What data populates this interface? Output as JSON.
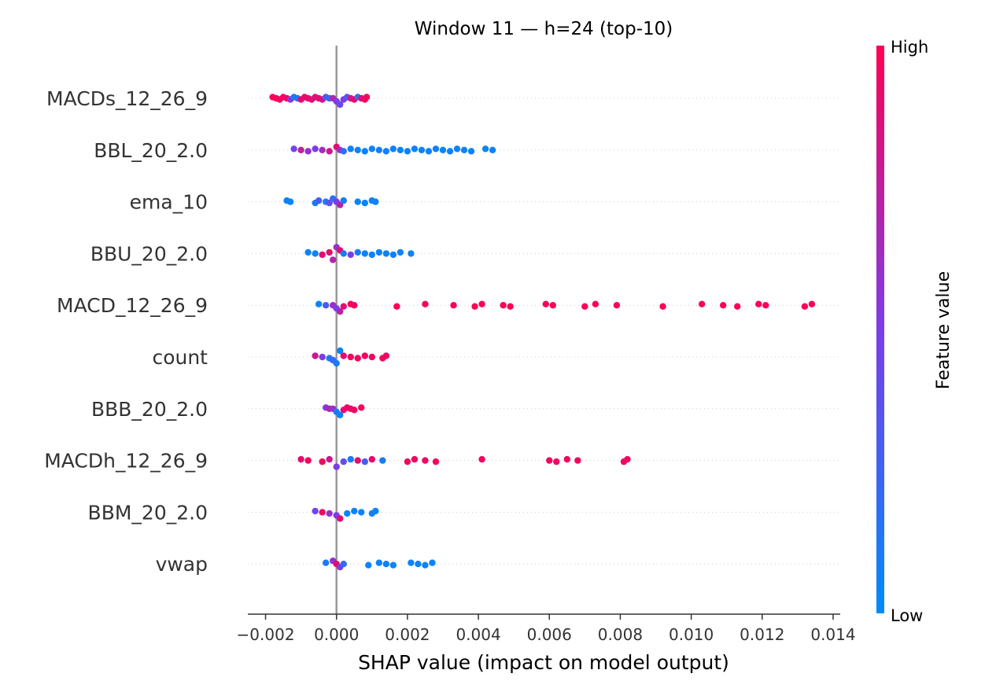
{
  "chart_data": {
    "type": "scatter",
    "subtype": "shap-beeswarm",
    "title": "Window 11 — h=24 (top-10)",
    "xlabel": "SHAP value (impact on model output)",
    "ylabel": "",
    "xlim": [
      -0.0025,
      0.0142
    ],
    "x_ticks": [
      -0.002,
      0.0,
      0.002,
      0.004,
      0.006,
      0.008,
      0.01,
      0.012,
      0.014
    ],
    "x_tick_labels": [
      "−0.002",
      "0.000",
      "0.002",
      "0.004",
      "0.006",
      "0.008",
      "0.010",
      "0.012",
      "0.014"
    ],
    "zero_line": 0.0,
    "grid": false,
    "colorbar": {
      "title": "Feature value",
      "high_label": "High",
      "low_label": "Low",
      "low_color": "#008bfb",
      "mid_color": "#7c3de8",
      "high_color": "#ff0052"
    },
    "features": [
      {
        "name": "MACDs_12_26_9",
        "points": [
          {
            "x": -0.0018,
            "v": 0.98
          },
          {
            "x": -0.0017,
            "v": 0.97
          },
          {
            "x": -0.0016,
            "v": 0.95
          },
          {
            "x": -0.0015,
            "v": 0.96
          },
          {
            "x": -0.0014,
            "v": 0.92
          },
          {
            "x": -0.0013,
            "v": 0.55
          },
          {
            "x": -0.0012,
            "v": 0.1
          },
          {
            "x": -0.0011,
            "v": 0.15
          },
          {
            "x": -0.001,
            "v": 0.9
          },
          {
            "x": -0.0009,
            "v": 0.93
          },
          {
            "x": -0.0008,
            "v": 0.9
          },
          {
            "x": -0.0007,
            "v": 0.88
          },
          {
            "x": -0.0006,
            "v": 0.85
          },
          {
            "x": -0.0005,
            "v": 0.9
          },
          {
            "x": -0.0004,
            "v": 0.82
          },
          {
            "x": -0.0003,
            "v": 0.3
          },
          {
            "x": -0.0002,
            "v": 0.2
          },
          {
            "x": -0.0001,
            "v": 0.7
          },
          {
            "x": 0.0,
            "v": 0.5
          },
          {
            "x": 0.0001,
            "v": 0.45
          },
          {
            "x": 0.0002,
            "v": 0.5
          },
          {
            "x": 0.0003,
            "v": 0.35
          },
          {
            "x": 0.0004,
            "v": 0.8
          },
          {
            "x": 0.0005,
            "v": 0.92
          },
          {
            "x": 0.0006,
            "v": 0.2
          },
          {
            "x": 0.0007,
            "v": 0.85
          },
          {
            "x": 0.0008,
            "v": 0.95
          },
          {
            "x": 0.00085,
            "v": 0.96
          }
        ]
      },
      {
        "name": "BBL_20_2.0",
        "points": [
          {
            "x": -0.0012,
            "v": 0.45
          },
          {
            "x": -0.001,
            "v": 0.75
          },
          {
            "x": -0.0008,
            "v": 0.6
          },
          {
            "x": -0.0006,
            "v": 0.5
          },
          {
            "x": -0.0004,
            "v": 0.65
          },
          {
            "x": -0.0002,
            "v": 0.8
          },
          {
            "x": 0.0,
            "v": 0.9
          },
          {
            "x": 0.0001,
            "v": 0.6
          },
          {
            "x": 0.0002,
            "v": 0.2
          },
          {
            "x": 0.0004,
            "v": 0.05
          },
          {
            "x": 0.0006,
            "v": 0.05
          },
          {
            "x": 0.0008,
            "v": 0.05
          },
          {
            "x": 0.001,
            "v": 0.05
          },
          {
            "x": 0.0012,
            "v": 0.05
          },
          {
            "x": 0.0014,
            "v": 0.05
          },
          {
            "x": 0.0016,
            "v": 0.05
          },
          {
            "x": 0.0018,
            "v": 0.05
          },
          {
            "x": 0.002,
            "v": 0.05
          },
          {
            "x": 0.0022,
            "v": 0.05
          },
          {
            "x": 0.0024,
            "v": 0.05
          },
          {
            "x": 0.0026,
            "v": 0.05
          },
          {
            "x": 0.0028,
            "v": 0.05
          },
          {
            "x": 0.003,
            "v": 0.05
          },
          {
            "x": 0.0032,
            "v": 0.05
          },
          {
            "x": 0.0034,
            "v": 0.05
          },
          {
            "x": 0.0036,
            "v": 0.05
          },
          {
            "x": 0.0038,
            "v": 0.05
          },
          {
            "x": 0.0042,
            "v": 0.05
          },
          {
            "x": 0.0044,
            "v": 0.05
          }
        ]
      },
      {
        "name": "ema_10",
        "points": [
          {
            "x": -0.0014,
            "v": 0.05
          },
          {
            "x": -0.0013,
            "v": 0.05
          },
          {
            "x": -0.0006,
            "v": 0.1
          },
          {
            "x": -0.0005,
            "v": 0.3
          },
          {
            "x": -0.0003,
            "v": 0.1
          },
          {
            "x": -0.0002,
            "v": 0.4
          },
          {
            "x": -0.0001,
            "v": 0.2
          },
          {
            "x": 0.0,
            "v": 0.5
          },
          {
            "x": 0.0001,
            "v": 0.7
          },
          {
            "x": 0.0002,
            "v": 0.1
          },
          {
            "x": 0.0006,
            "v": 0.05
          },
          {
            "x": 0.0008,
            "v": 0.05
          },
          {
            "x": 0.001,
            "v": 0.05
          },
          {
            "x": 0.0011,
            "v": 0.05
          }
        ]
      },
      {
        "name": "BBU_20_2.0",
        "points": [
          {
            "x": -0.0008,
            "v": 0.05
          },
          {
            "x": -0.0006,
            "v": 0.05
          },
          {
            "x": -0.0004,
            "v": 0.9
          },
          {
            "x": -0.0002,
            "v": 0.9
          },
          {
            "x": -0.0001,
            "v": 0.7
          },
          {
            "x": 0.0,
            "v": 0.6
          },
          {
            "x": 0.0001,
            "v": 0.9
          },
          {
            "x": 0.0002,
            "v": 0.1
          },
          {
            "x": 0.0004,
            "v": 0.5
          },
          {
            "x": 0.0006,
            "v": 0.1
          },
          {
            "x": 0.0008,
            "v": 0.05
          },
          {
            "x": 0.001,
            "v": 0.05
          },
          {
            "x": 0.0012,
            "v": 0.05
          },
          {
            "x": 0.0014,
            "v": 0.05
          },
          {
            "x": 0.0016,
            "v": 0.05
          },
          {
            "x": 0.0018,
            "v": 0.05
          },
          {
            "x": 0.0021,
            "v": 0.05
          }
        ]
      },
      {
        "name": "MACD_12_26_9",
        "points": [
          {
            "x": -0.0005,
            "v": 0.05
          },
          {
            "x": -0.0003,
            "v": 0.3
          },
          {
            "x": -0.0001,
            "v": 0.6
          },
          {
            "x": 0.0,
            "v": 0.5
          },
          {
            "x": 0.0001,
            "v": 0.7
          },
          {
            "x": 0.0002,
            "v": 0.9
          },
          {
            "x": 0.0004,
            "v": 0.95
          },
          {
            "x": 0.0005,
            "v": 0.95
          },
          {
            "x": 0.0017,
            "v": 0.98
          },
          {
            "x": 0.0025,
            "v": 0.98
          },
          {
            "x": 0.0033,
            "v": 0.98
          },
          {
            "x": 0.0039,
            "v": 0.98
          },
          {
            "x": 0.0041,
            "v": 0.98
          },
          {
            "x": 0.0047,
            "v": 0.98
          },
          {
            "x": 0.0049,
            "v": 0.98
          },
          {
            "x": 0.0059,
            "v": 0.98
          },
          {
            "x": 0.0061,
            "v": 0.98
          },
          {
            "x": 0.007,
            "v": 0.98
          },
          {
            "x": 0.0073,
            "v": 0.98
          },
          {
            "x": 0.0079,
            "v": 0.98
          },
          {
            "x": 0.0092,
            "v": 0.98
          },
          {
            "x": 0.0103,
            "v": 0.98
          },
          {
            "x": 0.0109,
            "v": 0.98
          },
          {
            "x": 0.0113,
            "v": 0.98
          },
          {
            "x": 0.0119,
            "v": 0.98
          },
          {
            "x": 0.0121,
            "v": 0.98
          },
          {
            "x": 0.0132,
            "v": 0.98
          },
          {
            "x": 0.0134,
            "v": 0.98
          }
        ]
      },
      {
        "name": "count",
        "points": [
          {
            "x": -0.0006,
            "v": 0.8
          },
          {
            "x": -0.0004,
            "v": 0.5
          },
          {
            "x": -0.0002,
            "v": 0.1
          },
          {
            "x": -0.0001,
            "v": 0.2
          },
          {
            "x": 0.0,
            "v": 0.1
          },
          {
            "x": 0.0001,
            "v": 0.05
          },
          {
            "x": 0.0002,
            "v": 0.9
          },
          {
            "x": 0.0004,
            "v": 0.95
          },
          {
            "x": 0.0006,
            "v": 0.95
          },
          {
            "x": 0.0008,
            "v": 0.95
          },
          {
            "x": 0.001,
            "v": 0.95
          },
          {
            "x": 0.0013,
            "v": 0.95
          },
          {
            "x": 0.0014,
            "v": 0.95
          }
        ]
      },
      {
        "name": "BBB_20_2.0",
        "points": [
          {
            "x": -0.0003,
            "v": 0.55
          },
          {
            "x": -0.0002,
            "v": 0.7
          },
          {
            "x": -0.0001,
            "v": 0.6
          },
          {
            "x": 0.0,
            "v": 0.1
          },
          {
            "x": 0.0001,
            "v": 0.05
          },
          {
            "x": 0.0002,
            "v": 0.9
          },
          {
            "x": 0.0003,
            "v": 0.95
          },
          {
            "x": 0.0004,
            "v": 0.92
          },
          {
            "x": 0.0005,
            "v": 0.95
          },
          {
            "x": 0.0007,
            "v": 0.97
          }
        ]
      },
      {
        "name": "MACDh_12_26_9",
        "points": [
          {
            "x": -0.001,
            "v": 0.9
          },
          {
            "x": -0.0008,
            "v": 0.95
          },
          {
            "x": -0.0004,
            "v": 0.95
          },
          {
            "x": -0.0002,
            "v": 0.8
          },
          {
            "x": 0.0,
            "v": 0.5
          },
          {
            "x": 0.0002,
            "v": 0.4
          },
          {
            "x": 0.0004,
            "v": 0.1
          },
          {
            "x": 0.0006,
            "v": 0.9
          },
          {
            "x": 0.0008,
            "v": 0.3
          },
          {
            "x": 0.001,
            "v": 0.92
          },
          {
            "x": 0.0013,
            "v": 0.1
          },
          {
            "x": 0.002,
            "v": 0.95
          },
          {
            "x": 0.0022,
            "v": 0.95
          },
          {
            "x": 0.0025,
            "v": 0.95
          },
          {
            "x": 0.0028,
            "v": 0.95
          },
          {
            "x": 0.0041,
            "v": 0.95
          },
          {
            "x": 0.006,
            "v": 0.95
          },
          {
            "x": 0.0062,
            "v": 0.95
          },
          {
            "x": 0.0065,
            "v": 0.95
          },
          {
            "x": 0.0068,
            "v": 0.95
          },
          {
            "x": 0.0081,
            "v": 0.95
          },
          {
            "x": 0.0082,
            "v": 0.95
          }
        ]
      },
      {
        "name": "BBM_20_2.0",
        "points": [
          {
            "x": -0.0006,
            "v": 0.45
          },
          {
            "x": -0.0004,
            "v": 0.95
          },
          {
            "x": -0.0002,
            "v": 0.6
          },
          {
            "x": 0.0,
            "v": 0.5
          },
          {
            "x": 0.0001,
            "v": 0.9
          },
          {
            "x": 0.0003,
            "v": 0.05
          },
          {
            "x": 0.0005,
            "v": 0.05
          },
          {
            "x": 0.0007,
            "v": 0.05
          },
          {
            "x": 0.001,
            "v": 0.05
          },
          {
            "x": 0.0011,
            "v": 0.05
          }
        ]
      },
      {
        "name": "vwap",
        "points": [
          {
            "x": -0.0003,
            "v": 0.1
          },
          {
            "x": -0.0001,
            "v": 0.6
          },
          {
            "x": 0.0,
            "v": 0.9
          },
          {
            "x": 0.0001,
            "v": 0.5
          },
          {
            "x": 0.0002,
            "v": 0.2
          },
          {
            "x": 0.0009,
            "v": 0.05
          },
          {
            "x": 0.0012,
            "v": 0.05
          },
          {
            "x": 0.0014,
            "v": 0.05
          },
          {
            "x": 0.0016,
            "v": 0.05
          },
          {
            "x": 0.0021,
            "v": 0.05
          },
          {
            "x": 0.0023,
            "v": 0.05
          },
          {
            "x": 0.0025,
            "v": 0.05
          },
          {
            "x": 0.0027,
            "v": 0.05
          }
        ]
      }
    ]
  }
}
